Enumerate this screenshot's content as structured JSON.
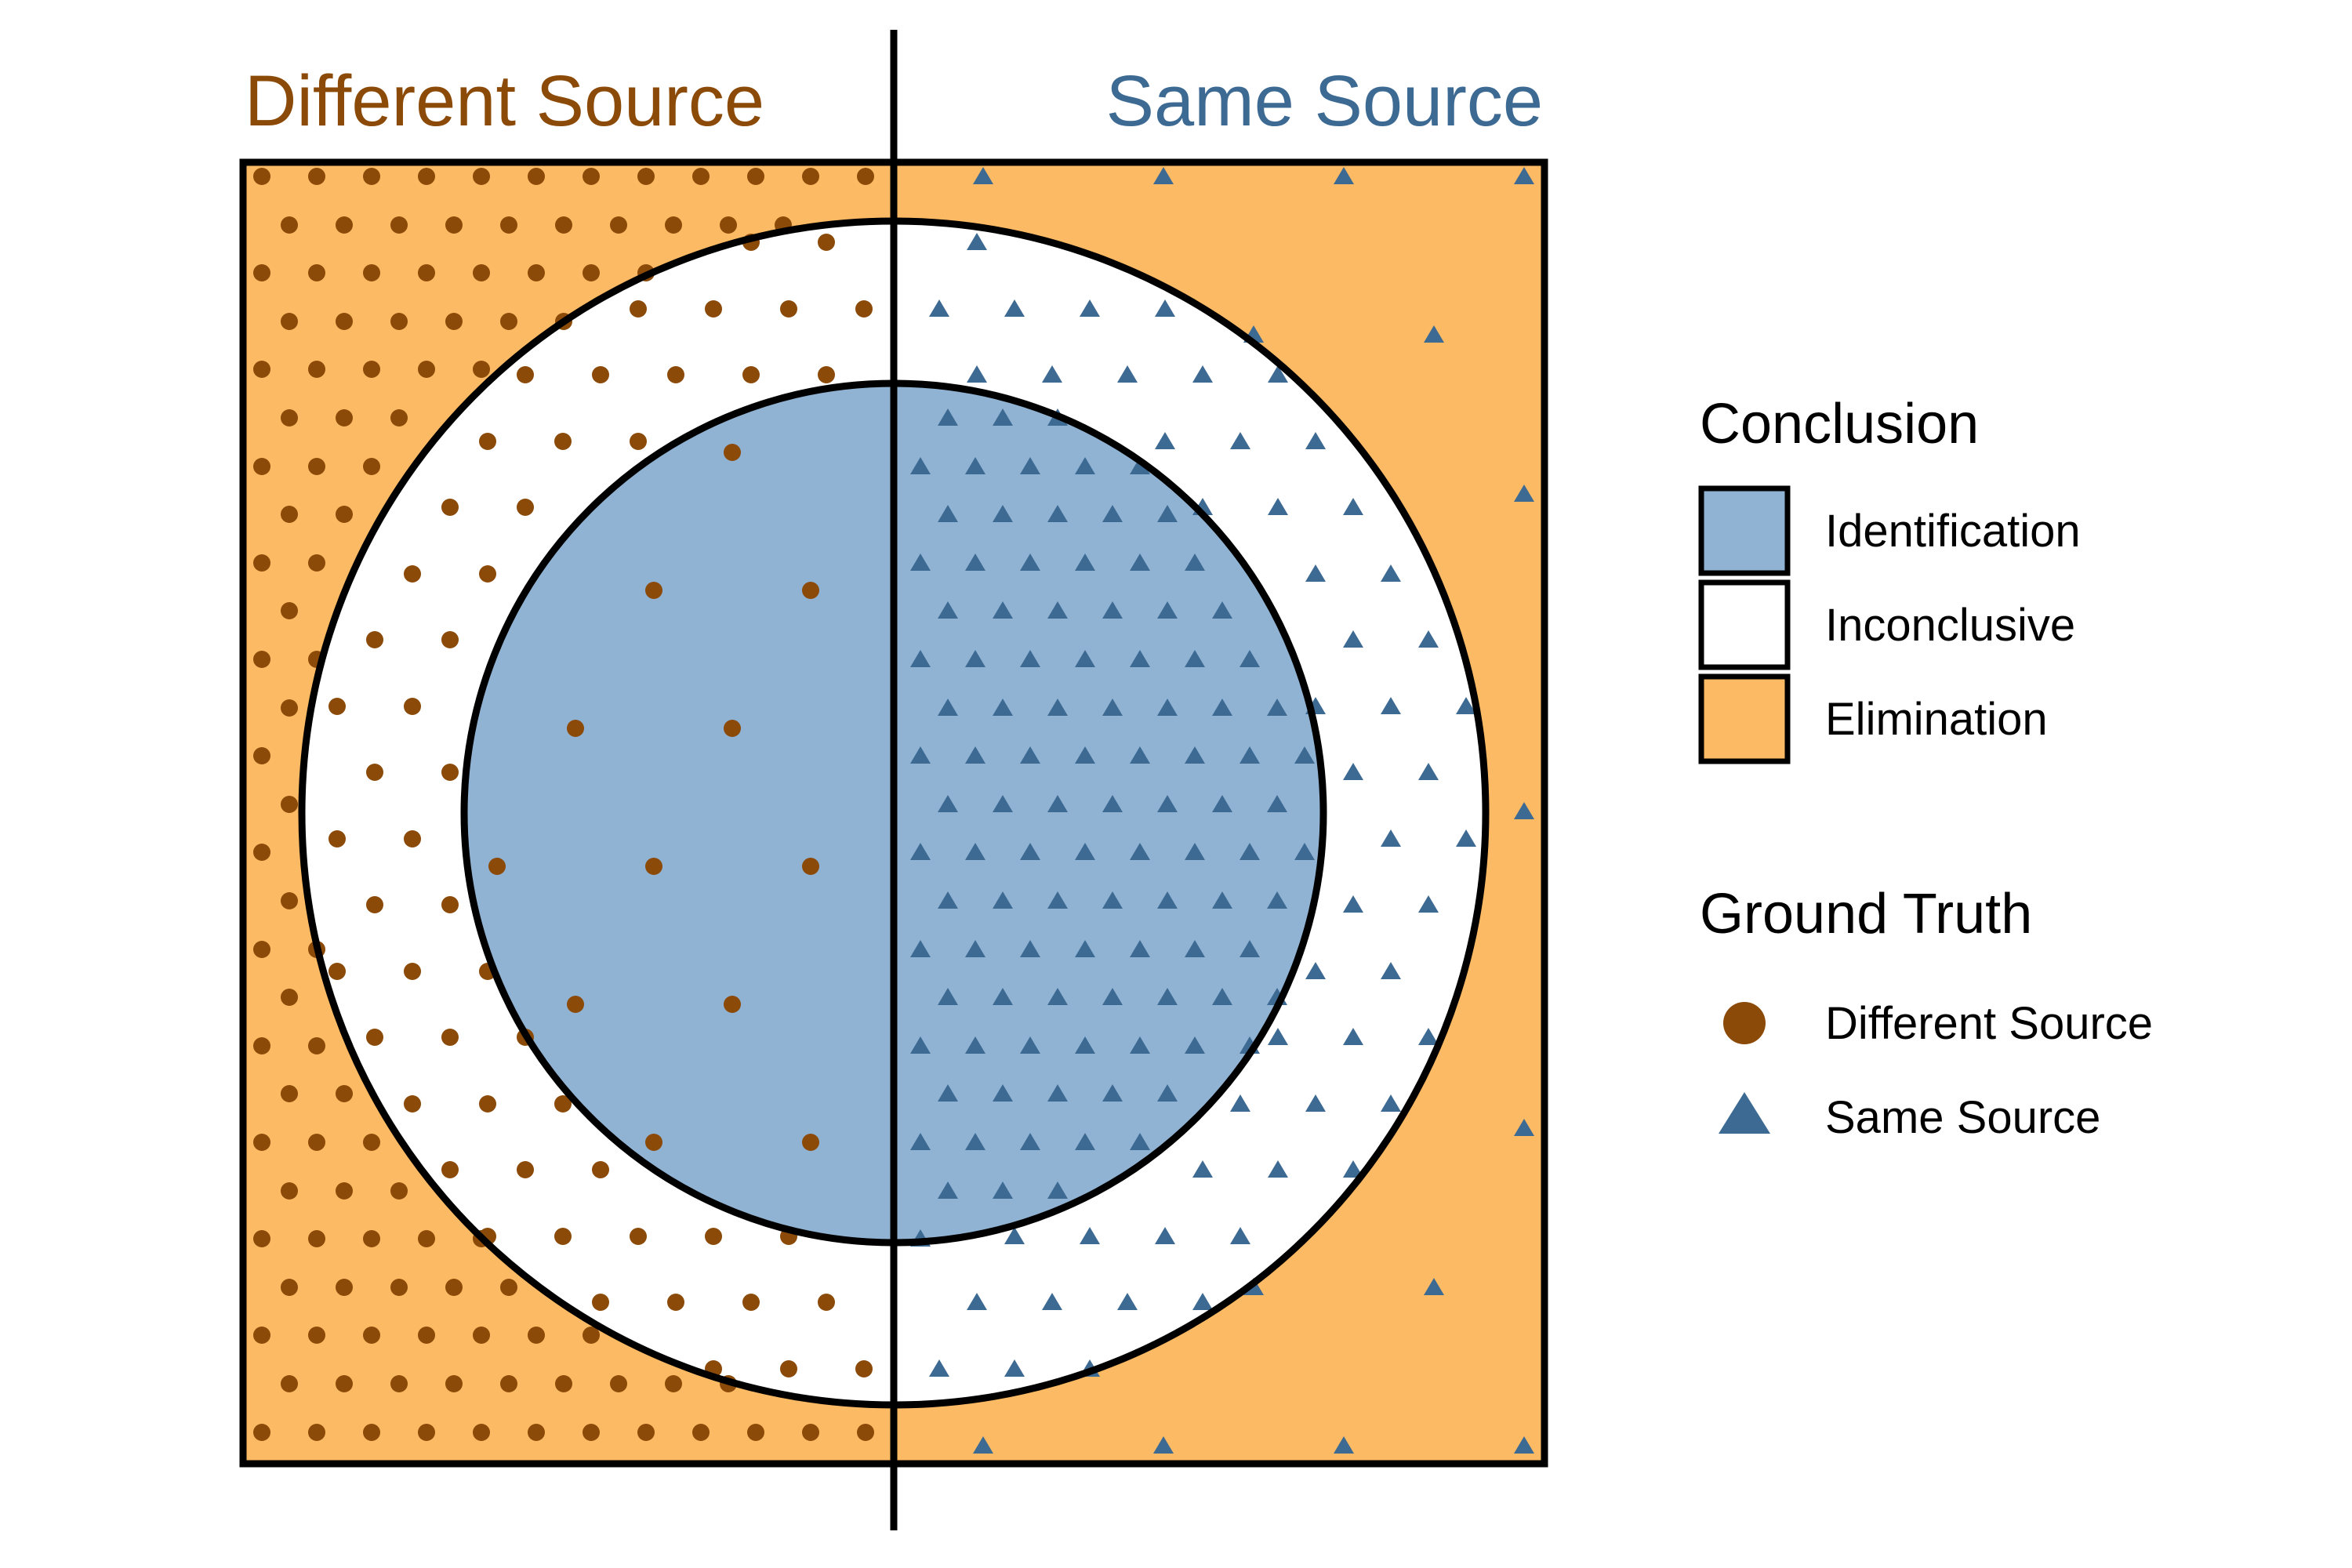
{
  "headers": {
    "left": "Different Source",
    "right": "Same Source"
  },
  "legend": {
    "conclusion_title": "Conclusion",
    "conclusion_items": [
      {
        "label": "Identification",
        "color": "#91B3D3"
      },
      {
        "label": "Inconclusive",
        "color": "#FFFFFF"
      },
      {
        "label": "Elimination",
        "color": "#FDBA64"
      }
    ],
    "truth_title": "Ground Truth",
    "truth_items": [
      {
        "label": "Different Source",
        "shape": "circle",
        "color": "#8B4A08"
      },
      {
        "label": "Same Source",
        "shape": "triangle",
        "color": "#3D6A93"
      }
    ]
  },
  "colors": {
    "different_source_text": "#8B4A08",
    "same_source_text": "#3D6A93",
    "outline": "#000000"
  }
}
